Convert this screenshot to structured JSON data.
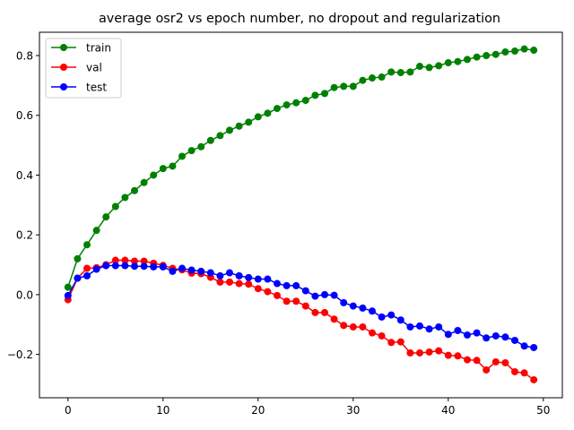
{
  "chart_data": {
    "type": "line",
    "title": "average osr2 vs epoch number, no dropout and regularization",
    "xlabel": "",
    "ylabel": "",
    "xlim": [
      -3.0,
      52.0
    ],
    "ylim": [
      -0.345,
      0.878
    ],
    "x_ticks": [
      0,
      10,
      20,
      30,
      40,
      50
    ],
    "x_tick_labels": [
      "0",
      "10",
      "20",
      "30",
      "40",
      "50"
    ],
    "y_ticks": [
      -0.2,
      0.0,
      0.2,
      0.4,
      0.6,
      0.8
    ],
    "y_tick_labels": [
      "−0.2",
      "0.0",
      "0.2",
      "0.4",
      "0.6",
      "0.8"
    ],
    "grid": false,
    "legend_position": "top-left",
    "marker": "circle",
    "x": [
      0,
      1,
      2,
      3,
      4,
      5,
      6,
      7,
      8,
      9,
      10,
      11,
      12,
      13,
      14,
      15,
      16,
      17,
      18,
      19,
      20,
      21,
      22,
      23,
      24,
      25,
      26,
      27,
      28,
      29,
      30,
      31,
      32,
      33,
      34,
      35,
      36,
      37,
      38,
      39,
      40,
      41,
      42,
      43,
      44,
      45,
      46,
      47,
      48,
      49
    ],
    "series": [
      {
        "name": "train",
        "color": "#008000",
        "values": [
          0.025,
          0.12,
          0.167,
          0.215,
          0.26,
          0.295,
          0.325,
          0.348,
          0.375,
          0.4,
          0.422,
          0.43,
          0.463,
          0.482,
          0.495,
          0.516,
          0.532,
          0.55,
          0.564,
          0.577,
          0.595,
          0.607,
          0.623,
          0.635,
          0.642,
          0.65,
          0.667,
          0.673,
          0.693,
          0.697,
          0.697,
          0.717,
          0.725,
          0.728,
          0.745,
          0.743,
          0.745,
          0.764,
          0.76,
          0.766,
          0.776,
          0.78,
          0.787,
          0.795,
          0.8,
          0.804,
          0.812,
          0.815,
          0.822,
          0.818
        ]
      },
      {
        "name": "val",
        "color": "#ff0000",
        "values": [
          -0.017,
          0.055,
          0.088,
          0.09,
          0.1,
          0.115,
          0.115,
          0.112,
          0.112,
          0.105,
          0.098,
          0.088,
          0.083,
          0.072,
          0.07,
          0.058,
          0.042,
          0.042,
          0.037,
          0.035,
          0.02,
          0.01,
          -0.003,
          -0.022,
          -0.022,
          -0.038,
          -0.06,
          -0.06,
          -0.082,
          -0.103,
          -0.108,
          -0.108,
          -0.128,
          -0.138,
          -0.16,
          -0.158,
          -0.195,
          -0.195,
          -0.192,
          -0.188,
          -0.203,
          -0.205,
          -0.218,
          -0.22,
          -0.252,
          -0.225,
          -0.228,
          -0.258,
          -0.262,
          -0.285
        ]
      },
      {
        "name": "test",
        "color": "#0000ff",
        "values": [
          -0.003,
          0.055,
          0.063,
          0.085,
          0.097,
          0.097,
          0.097,
          0.095,
          0.095,
          0.093,
          0.093,
          0.078,
          0.088,
          0.082,
          0.078,
          0.073,
          0.063,
          0.073,
          0.063,
          0.057,
          0.052,
          0.052,
          0.037,
          0.03,
          0.03,
          0.013,
          -0.005,
          0.0,
          -0.002,
          -0.027,
          -0.038,
          -0.045,
          -0.055,
          -0.075,
          -0.068,
          -0.085,
          -0.108,
          -0.105,
          -0.115,
          -0.108,
          -0.133,
          -0.12,
          -0.135,
          -0.128,
          -0.145,
          -0.138,
          -0.142,
          -0.153,
          -0.172,
          -0.177
        ]
      }
    ]
  }
}
